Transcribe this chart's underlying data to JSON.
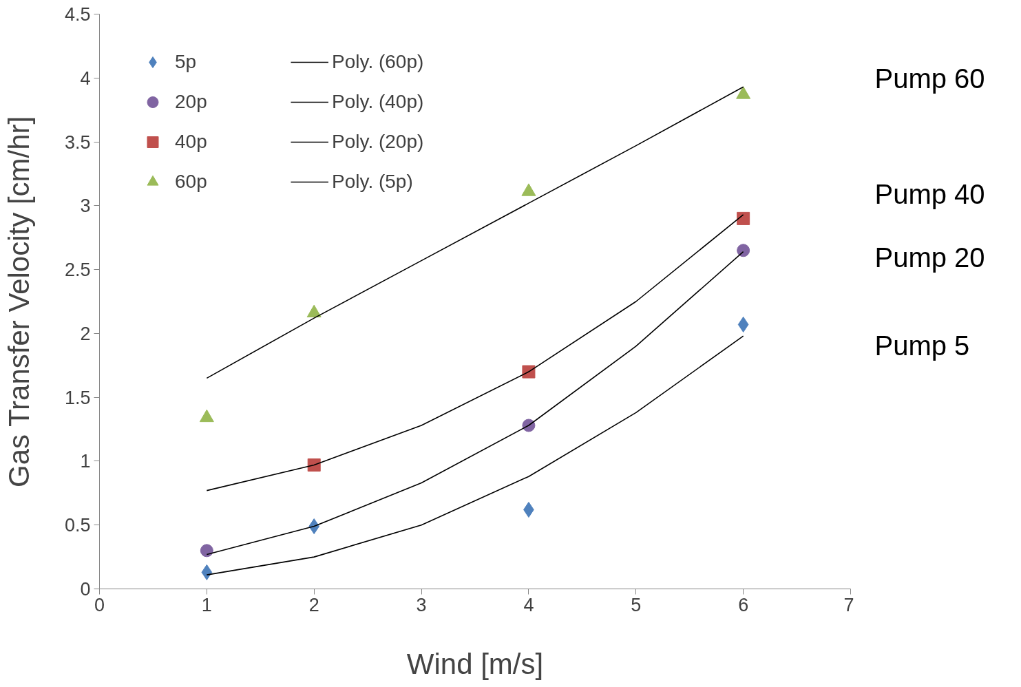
{
  "chart_data": {
    "type": "scatter",
    "xlabel": "Wind [m/s]",
    "ylabel": "Gas Transfer Velocity [cm/hr]",
    "xlim": [
      0,
      7
    ],
    "ylim": [
      0,
      4.5
    ],
    "xticks": [
      0,
      1,
      2,
      3,
      4,
      5,
      6,
      7
    ],
    "yticks": [
      0,
      0.5,
      1,
      1.5,
      2,
      2.5,
      3,
      3.5,
      4,
      4.5
    ],
    "grid": false,
    "legend": "top left",
    "series": [
      {
        "name": "5p",
        "marker": "diamond",
        "color": "#4f81bd",
        "x": [
          1,
          2,
          4,
          6
        ],
        "values": [
          0.13,
          0.49,
          0.62,
          2.07
        ]
      },
      {
        "name": "20p",
        "marker": "circle",
        "color": "#8064a2",
        "x": [
          1,
          4,
          6
        ],
        "values": [
          0.3,
          1.28,
          2.65
        ]
      },
      {
        "name": "40p",
        "marker": "square",
        "color": "#c0504d",
        "x": [
          2,
          4,
          6
        ],
        "values": [
          0.97,
          1.7,
          2.9
        ]
      },
      {
        "name": "60p",
        "marker": "triangle",
        "color": "#9bbb59",
        "x": [
          1,
          2,
          4,
          6
        ],
        "values": [
          1.34,
          2.16,
          3.11,
          3.87
        ]
      },
      {
        "name": "Poly. (60p)",
        "type": "line",
        "color": "#000000",
        "x": [
          1,
          2,
          3,
          4,
          5,
          6
        ],
        "values": [
          1.65,
          2.12,
          2.57,
          3.02,
          3.47,
          3.93
        ]
      },
      {
        "name": "Poly. (40p)",
        "type": "line",
        "color": "#000000",
        "x": [
          1,
          2,
          3,
          4,
          5,
          6
        ],
        "values": [
          0.77,
          0.97,
          1.28,
          1.7,
          2.25,
          2.93
        ]
      },
      {
        "name": "Poly. (20p)",
        "type": "line",
        "color": "#000000",
        "x": [
          1,
          2,
          3,
          4,
          5,
          6
        ],
        "values": [
          0.27,
          0.49,
          0.83,
          1.28,
          1.9,
          2.64
        ]
      },
      {
        "name": "Poly. (5p)",
        "type": "line",
        "color": "#000000",
        "x": [
          1,
          2,
          3,
          4,
          5,
          6
        ],
        "values": [
          0.11,
          0.25,
          0.5,
          0.88,
          1.38,
          1.98
        ]
      }
    ],
    "annotations": [
      "Pump 60",
      "Pump 40",
      "Pump 20",
      "Pump 5"
    ]
  }
}
